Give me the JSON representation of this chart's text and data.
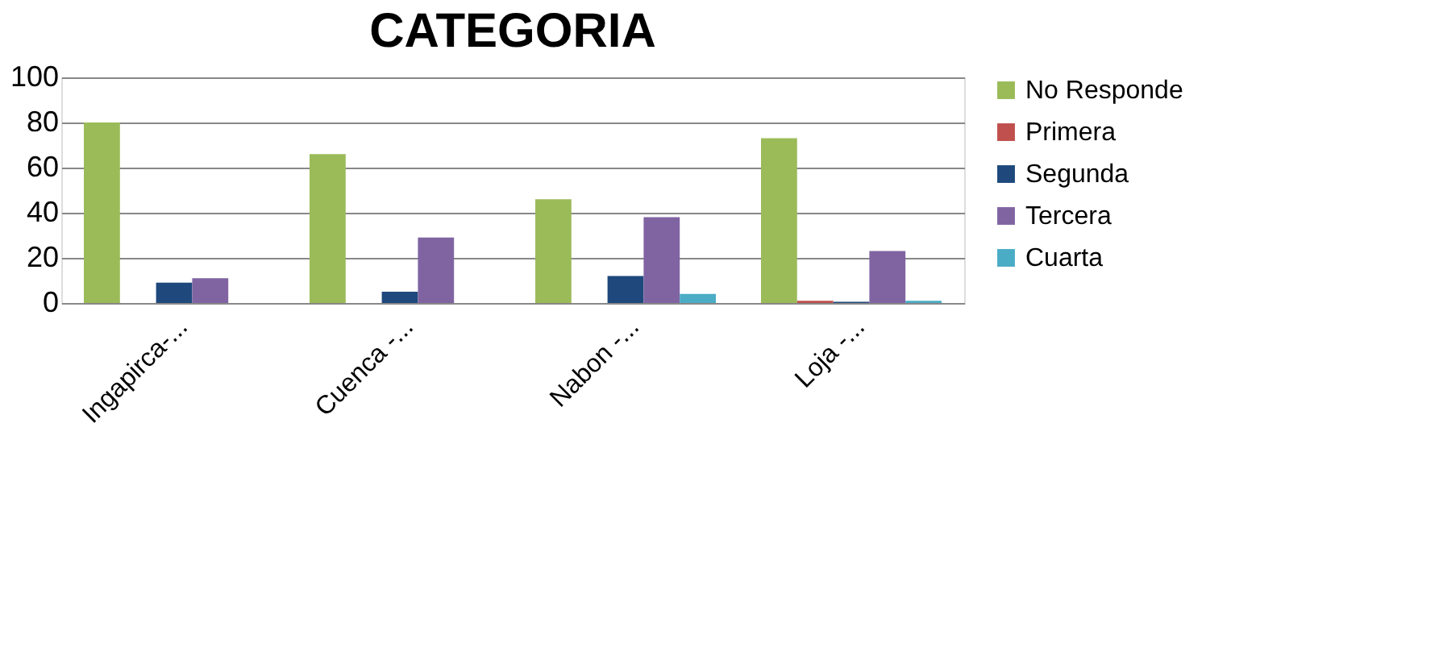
{
  "chart_data": {
    "type": "bar",
    "title": "CATEGORIA",
    "categories": [
      "Ingapirca-...",
      "Cuenca -...",
      "Nabon -...",
      "Loja -..."
    ],
    "series": [
      {
        "name": "No Responde",
        "color": "#9bbb59",
        "values": [
          80,
          66,
          46,
          73
        ]
      },
      {
        "name": "Primera",
        "color": "#c0504d",
        "values": [
          0,
          0,
          0,
          1
        ]
      },
      {
        "name": "Segunda",
        "color": "#1f497d",
        "values": [
          9,
          5,
          12,
          0.5
        ]
      },
      {
        "name": "Tercera",
        "color": "#8064a2",
        "values": [
          11,
          29,
          38,
          23
        ]
      },
      {
        "name": "Cuarta",
        "color": "#4bacc6",
        "values": [
          0,
          0,
          4,
          1
        ]
      }
    ],
    "ylim": [
      0,
      100
    ],
    "yticks": [
      0,
      20,
      40,
      60,
      80,
      100
    ],
    "grid": "y",
    "legend": "right"
  }
}
